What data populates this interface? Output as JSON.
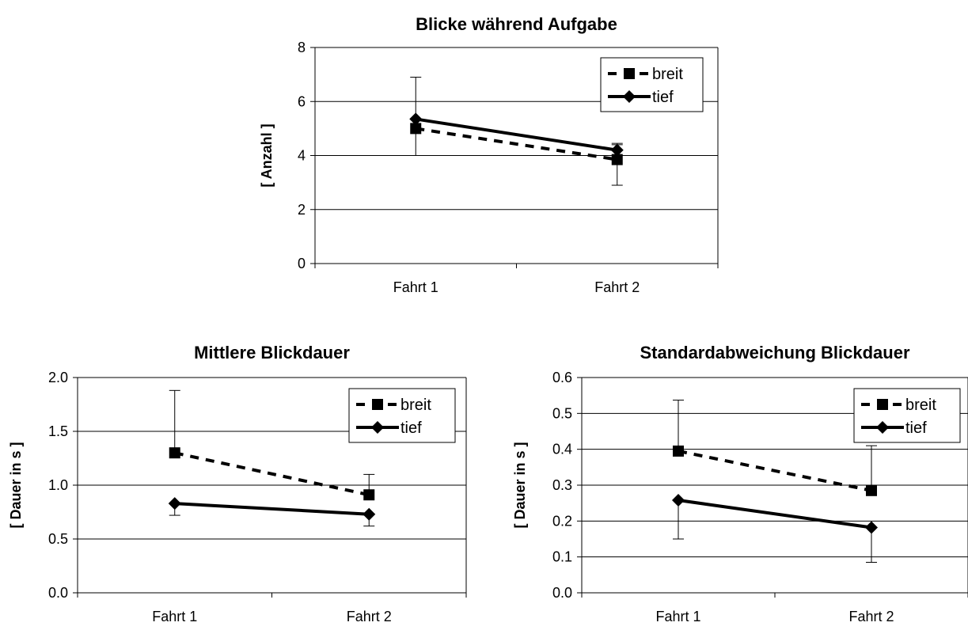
{
  "chart_data": [
    {
      "type": "line",
      "title": "Blicke während Aufgabe",
      "xlabel": "",
      "ylabel": "[ Anzahl ]",
      "categories": [
        "Fahrt 1",
        "Fahrt 2"
      ],
      "ylim": [
        0,
        8
      ],
      "yticks": [
        "0",
        "2",
        "4",
        "6",
        "8"
      ],
      "grid": true,
      "legend_position": "top-right",
      "series": [
        {
          "name": "breit",
          "values": [
            5.0,
            3.85
          ],
          "error_up": [
            6.9,
            4.4
          ],
          "error_down": [
            4.0,
            2.9
          ],
          "style": "dashed",
          "marker": "square"
        },
        {
          "name": "tief",
          "values": [
            5.35,
            4.2
          ],
          "error_up": [
            5.35,
            4.45
          ],
          "error_down": [
            5.35,
            4.2
          ],
          "style": "solid",
          "marker": "diamond"
        }
      ]
    },
    {
      "type": "line",
      "title": "Mittlere Blickdauer",
      "xlabel": "",
      "ylabel": "[ Dauer in s ]",
      "categories": [
        "Fahrt 1",
        "Fahrt 2"
      ],
      "ylim": [
        0,
        2
      ],
      "yticks": [
        "0.0",
        "0.5",
        "1.0",
        "1.5",
        "2.0"
      ],
      "grid": true,
      "legend_position": "top-right",
      "series": [
        {
          "name": "breit",
          "values": [
            1.3,
            0.91
          ],
          "error_up": [
            1.88,
            1.1
          ],
          "error_down": [
            1.3,
            0.91
          ],
          "style": "dashed",
          "marker": "square"
        },
        {
          "name": "tief",
          "values": [
            0.83,
            0.73
          ],
          "error_up": [
            0.83,
            0.73
          ],
          "error_down": [
            0.72,
            0.62
          ],
          "style": "solid",
          "marker": "diamond"
        }
      ]
    },
    {
      "type": "line",
      "title": "Standardabweichung Blickdauer",
      "xlabel": "",
      "ylabel": "[ Dauer in s ]",
      "categories": [
        "Fahrt 1",
        "Fahrt 2"
      ],
      "ylim": [
        0,
        0.6
      ],
      "yticks": [
        "0.0",
        "0.1",
        "0.2",
        "0.3",
        "0.4",
        "0.5",
        "0.6"
      ],
      "grid": true,
      "legend_position": "top-right",
      "series": [
        {
          "name": "breit",
          "values": [
            0.395,
            0.285
          ],
          "error_up": [
            0.537,
            0.41
          ],
          "error_down": [
            0.395,
            0.285
          ],
          "style": "dashed",
          "marker": "square"
        },
        {
          "name": "tief",
          "values": [
            0.258,
            0.182
          ],
          "error_up": [
            0.258,
            0.182
          ],
          "error_down": [
            0.15,
            0.085
          ],
          "style": "solid",
          "marker": "diamond"
        }
      ]
    }
  ]
}
